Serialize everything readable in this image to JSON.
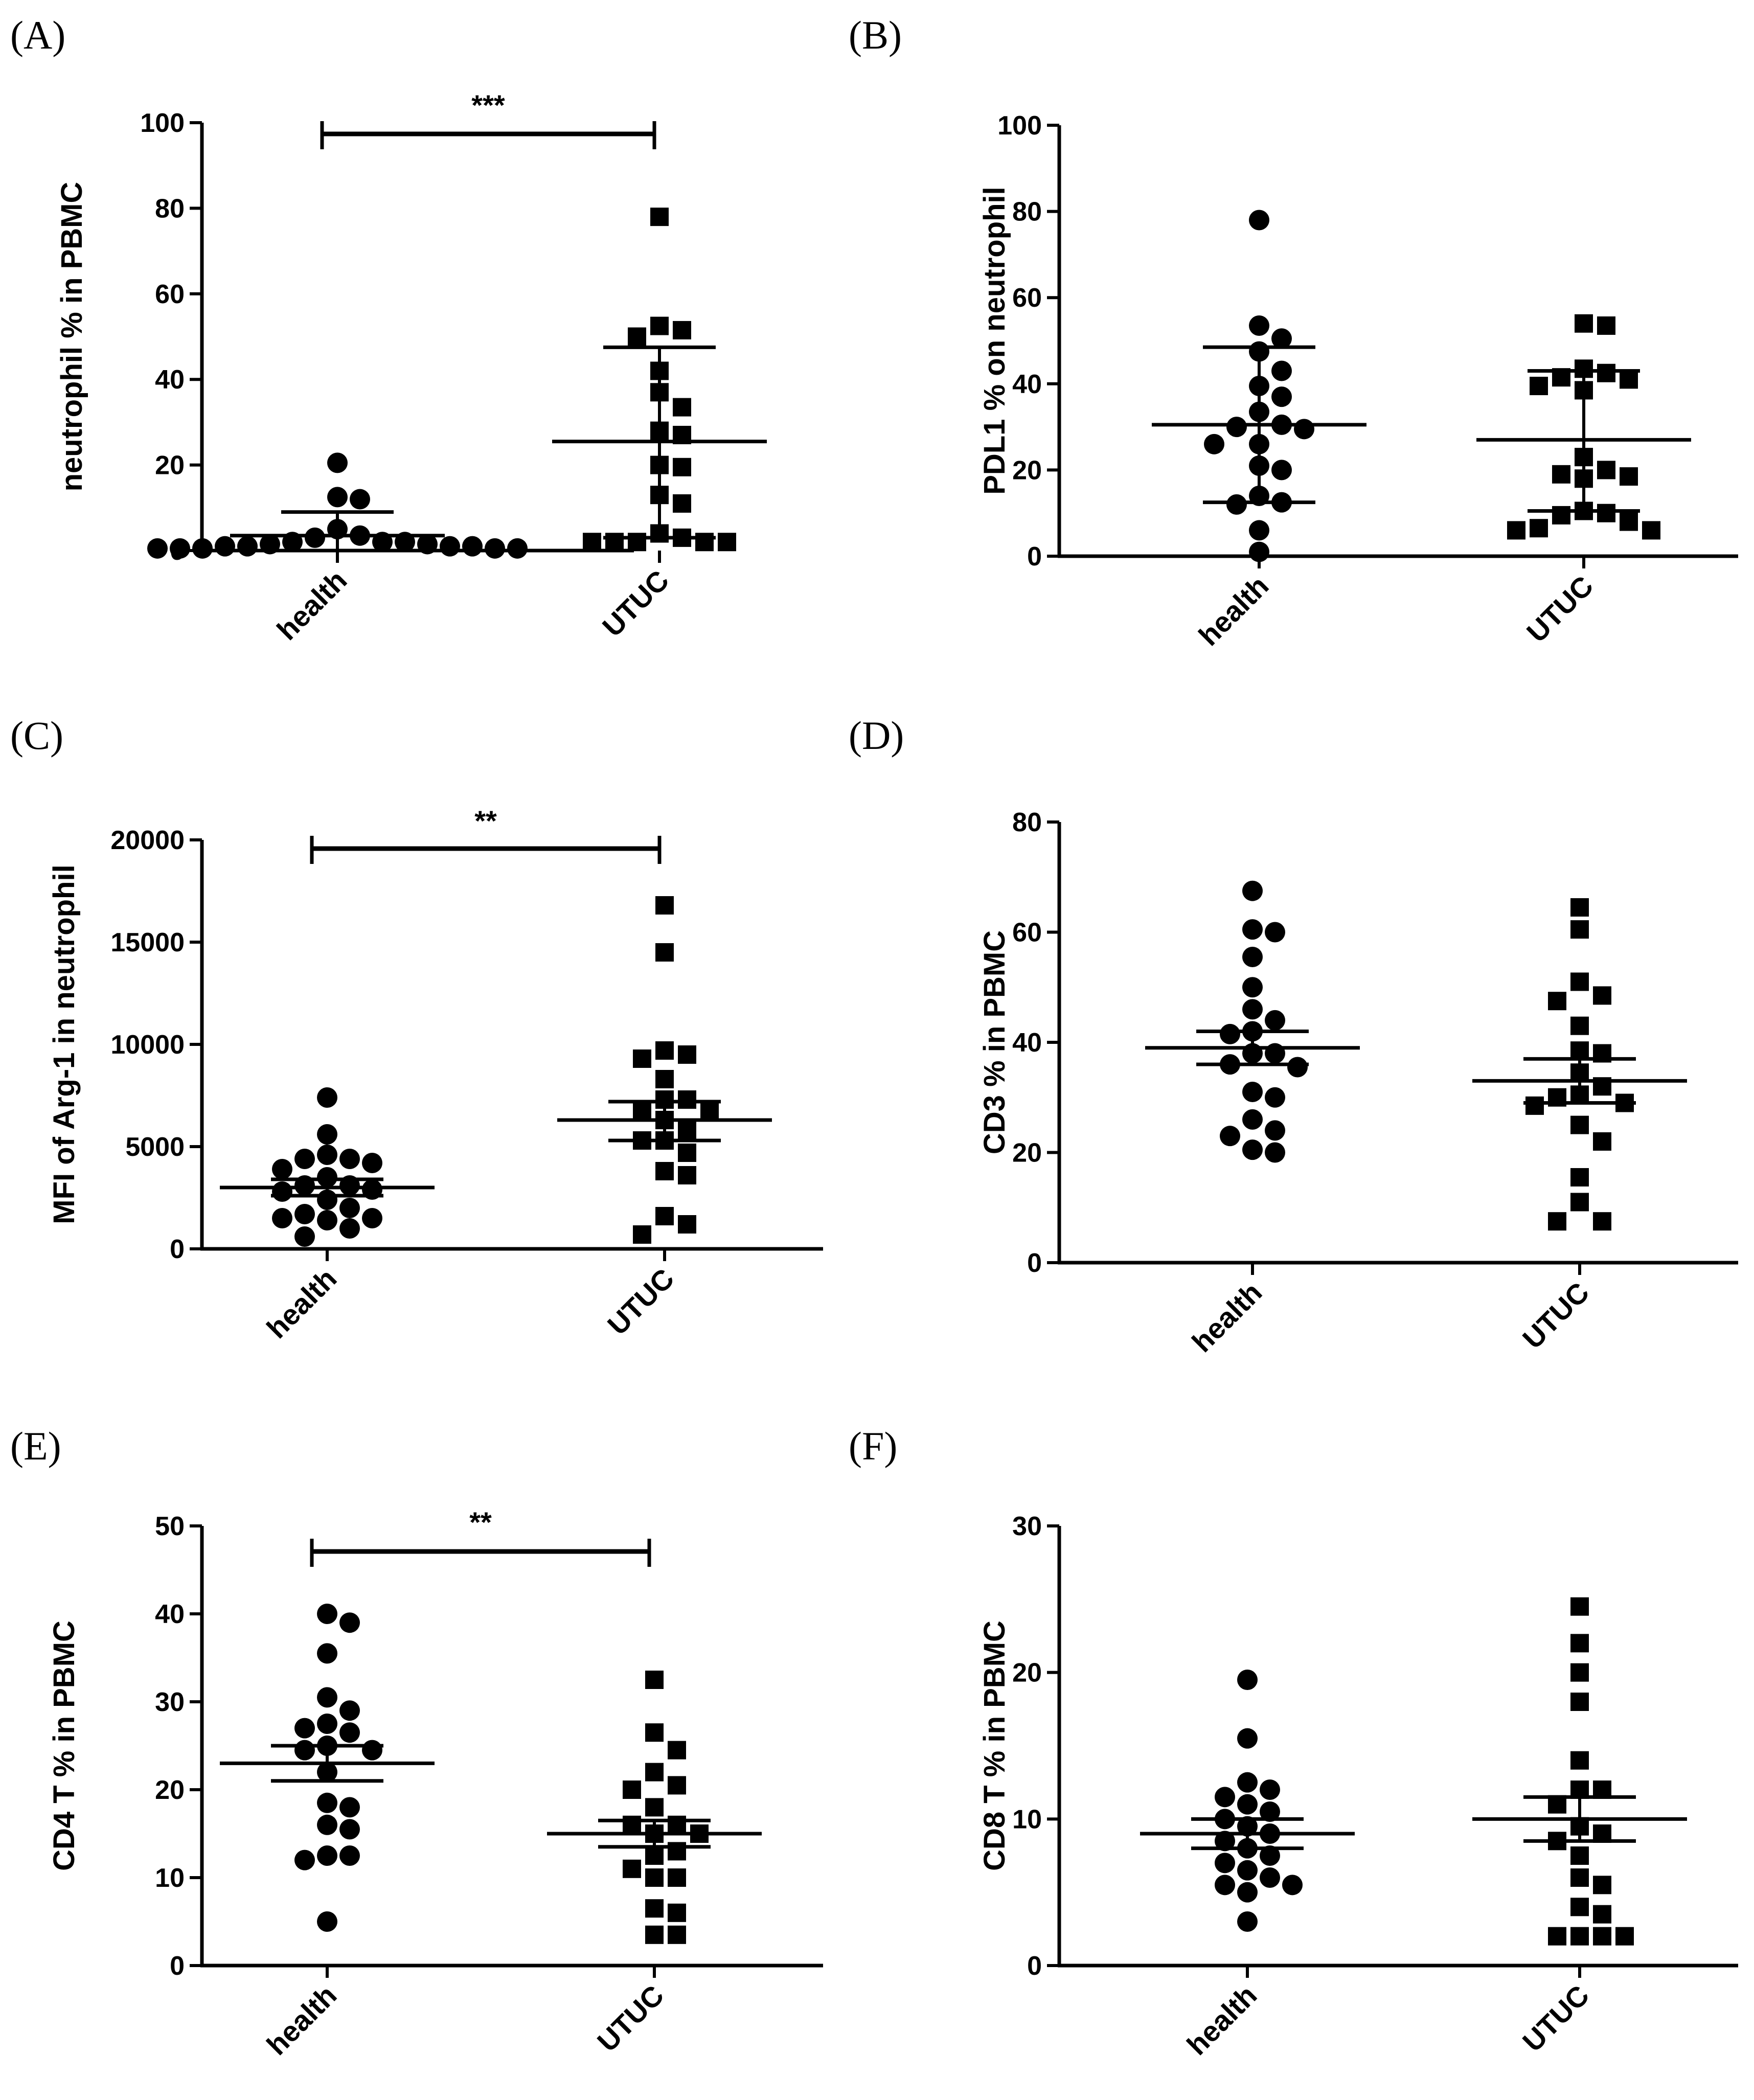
{
  "figure": {
    "background": "#ffffff",
    "ink": "#000000"
  },
  "chart_data": [
    {
      "panel": "(A)",
      "type": "scatter",
      "ylabel": "neutrophil % in PBMC",
      "yticks": [
        0,
        20,
        40,
        60,
        80,
        100
      ],
      "ylim": [
        0,
        100
      ],
      "categories": [
        "health",
        "UTUC"
      ],
      "significance": "***",
      "series": [
        {
          "name": "health",
          "marker": "circle",
          "values": [
            0.5,
            0.5,
            0.5,
            0.5,
            0.5,
            1,
            1,
            1,
            1,
            1.5,
            1.5,
            2,
            2,
            2,
            3,
            3.5,
            5,
            12,
            12.5,
            20.5
          ],
          "mean": 3.5,
          "err_upper": 9,
          "err_lower": 0
        },
        {
          "name": "UTUC",
          "marker": "square",
          "values": [
            78,
            52.5,
            51.5,
            50,
            42,
            37,
            33.5,
            28,
            27,
            20,
            19.5,
            13,
            11,
            4,
            2,
            2,
            2,
            2,
            2,
            3
          ],
          "mean": 25.5,
          "err_upper": 47.5,
          "err_lower": 3
        }
      ]
    },
    {
      "panel": "(B)",
      "type": "scatter",
      "ylabel": "PDL1 % on neutrophil",
      "yticks": [
        0,
        20,
        40,
        60,
        80,
        100
      ],
      "ylim": [
        0,
        100
      ],
      "categories": [
        "health",
        "UTUC"
      ],
      "significance": "",
      "series": [
        {
          "name": "health",
          "marker": "circle",
          "values": [
            78,
            53.5,
            50.5,
            47.5,
            39.5,
            37,
            33.5,
            30,
            29.5,
            26,
            26,
            21,
            20,
            12.5,
            12,
            6,
            1,
            30.5,
            14,
            43
          ],
          "mean": 30.5,
          "err_upper": 48.5,
          "err_lower": 12.5
        },
        {
          "name": "UTUC",
          "marker": "square",
          "values": [
            54,
            53.5,
            43.5,
            42.5,
            41.5,
            41,
            39.5,
            38.5,
            23,
            20,
            19,
            18.5,
            18,
            10.5,
            10,
            9.5,
            8,
            6,
            6,
            6.5
          ],
          "mean": 27,
          "err_upper": 43,
          "err_lower": 10.5
        }
      ]
    },
    {
      "panel": "(C)",
      "type": "scatter",
      "ylabel": "MFI of Arg-1 in neutrophil",
      "yticks": [
        0,
        5000,
        10000,
        15000,
        20000
      ],
      "ylim": [
        0,
        20000
      ],
      "categories": [
        "health",
        "UTUC"
      ],
      "significance": "**",
      "series": [
        {
          "name": "health",
          "marker": "circle",
          "values": [
            7400,
            5600,
            4600,
            4400,
            4400,
            4200,
            3900,
            3500,
            3100,
            3100,
            2900,
            2800,
            2400,
            2000,
            1700,
            1500,
            1500,
            1400,
            1000,
            600
          ],
          "mean": 3000,
          "err_upper": 3400,
          "err_lower": 2600
        },
        {
          "name": "UTUC",
          "marker": "square",
          "values": [
            16800,
            14500,
            9700,
            9500,
            9300,
            8300,
            7300,
            7300,
            6700,
            6700,
            6300,
            5800,
            5300,
            5300,
            4700,
            3800,
            3600,
            1600,
            1200,
            700
          ],
          "mean": 6300,
          "err_upper": 7200,
          "err_lower": 5300
        }
      ]
    },
    {
      "panel": "(D)",
      "type": "scatter",
      "ylabel": "CD3 % in PBMC",
      "yticks": [
        0,
        20,
        40,
        60,
        80
      ],
      "ylim": [
        0,
        80
      ],
      "categories": [
        "health",
        "UTUC"
      ],
      "significance": "",
      "series": [
        {
          "name": "health",
          "marker": "circle",
          "values": [
            67.5,
            60.5,
            60,
            55.5,
            50,
            46,
            44,
            42,
            41.5,
            38,
            38,
            36,
            35.5,
            31,
            30,
            26,
            24,
            23,
            20.5,
            20
          ],
          "mean": 39,
          "err_upper": 42,
          "err_lower": 36
        },
        {
          "name": "UTUC",
          "marker": "square",
          "values": [
            64.5,
            60.5,
            51,
            48.5,
            47.5,
            43,
            38.5,
            38,
            34.5,
            32,
            30.5,
            30,
            28.5,
            25,
            22,
            15.5,
            11,
            7.5,
            7.5,
            29
          ],
          "mean": 33,
          "err_upper": 37,
          "err_lower": 29
        }
      ]
    },
    {
      "panel": "(E)",
      "type": "scatter",
      "ylabel": "CD4 T % in PBMC",
      "yticks": [
        0,
        10,
        20,
        30,
        40,
        50
      ],
      "ylim": [
        0,
        50
      ],
      "categories": [
        "health",
        "UTUC"
      ],
      "significance": "**",
      "series": [
        {
          "name": "health",
          "marker": "circle",
          "values": [
            40,
            39,
            35.5,
            30.5,
            29,
            27.5,
            27,
            26.5,
            25,
            24.5,
            24.5,
            22,
            18.5,
            18,
            16,
            15.5,
            12.5,
            12.5,
            12,
            5
          ],
          "mean": 23,
          "err_upper": 25,
          "err_lower": 21
        },
        {
          "name": "UTUC",
          "marker": "square",
          "values": [
            32.5,
            26.5,
            24.5,
            22,
            20.5,
            20,
            18,
            16,
            16,
            15,
            15,
            13,
            12.5,
            11,
            10,
            10,
            6.5,
            6,
            3.5,
            3.5
          ],
          "mean": 15,
          "err_upper": 16.5,
          "err_lower": 13.5
        }
      ]
    },
    {
      "panel": "(F)",
      "type": "scatter",
      "ylabel": "CD8 T % in PBMC",
      "yticks": [
        0,
        10,
        20,
        30
      ],
      "ylim": [
        0,
        30
      ],
      "categories": [
        "health",
        "UTUC"
      ],
      "significance": "",
      "series": [
        {
          "name": "health",
          "marker": "circle",
          "values": [
            19.5,
            15.5,
            12.5,
            12,
            11.5,
            11,
            10.5,
            10,
            9.5,
            9,
            8.5,
            8,
            7.5,
            7,
            6.5,
            6,
            5.5,
            5.5,
            5,
            3
          ],
          "mean": 9,
          "err_upper": 10,
          "err_lower": 8
        },
        {
          "name": "UTUC",
          "marker": "square",
          "values": [
            24.5,
            22,
            20,
            18,
            14,
            12,
            12,
            11,
            9.5,
            9,
            8.5,
            7.5,
            6,
            5.5,
            4,
            3.5,
            2,
            2,
            2,
            2
          ],
          "mean": 10,
          "err_upper": 11.5,
          "err_lower": 8.5
        }
      ]
    }
  ]
}
